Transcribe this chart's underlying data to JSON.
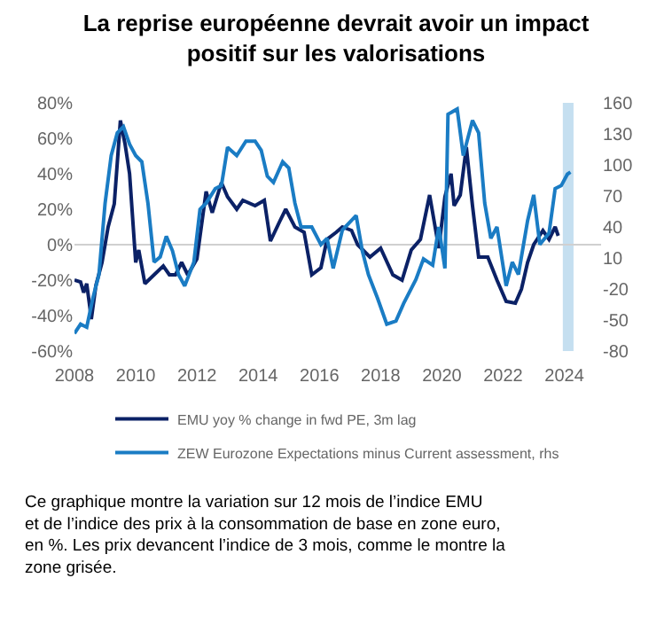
{
  "chart_data": {
    "type": "line",
    "title": "La reprise européenne devrait avoir un impact\npositif sur les valorisations",
    "xlim": [
      2008,
      2025.2
    ],
    "xticks": [
      2008,
      2010,
      2012,
      2014,
      2016,
      2018,
      2020,
      2022,
      2024
    ],
    "ylim": [
      -60,
      80
    ],
    "yticks": [
      {
        "value": -60,
        "label": "-60%"
      },
      {
        "value": -40,
        "label": "-40%"
      },
      {
        "value": -20,
        "label": "-20%"
      },
      {
        "value": 0,
        "label": "0%"
      },
      {
        "value": 20,
        "label": "20%"
      },
      {
        "value": 40,
        "label": "40%"
      },
      {
        "value": 60,
        "label": "60%"
      },
      {
        "value": 80,
        "label": "80%"
      }
    ],
    "y2lim": [
      -80,
      160
    ],
    "y2ticks": [
      -80,
      -50,
      -20,
      10,
      40,
      70,
      100,
      130,
      160
    ],
    "grid": false,
    "legend": "bottom",
    "marker": "none",
    "line_style": "solid",
    "ref_lines": [
      {
        "axis": "y",
        "value": 0,
        "label": null,
        "color": "#d0d0d0"
      }
    ],
    "bands": [
      {
        "axis": "x",
        "from": 2023.95,
        "to": 2024.3,
        "label": null,
        "color": "#c5dff0"
      }
    ],
    "series": [
      {
        "name": "EMU yoy % change in fwd PE, 3m lag",
        "color": "#0b2166",
        "x": [
          2008.0,
          2008.2,
          2008.3,
          2008.4,
          2008.5,
          2008.55,
          2008.7,
          2008.9,
          2009.1,
          2009.3,
          2009.5,
          2009.65,
          2009.8,
          2010.0,
          2010.1,
          2010.3,
          2010.6,
          2010.9,
          2011.1,
          2011.3,
          2011.5,
          2011.7,
          2012.0,
          2012.3,
          2012.5,
          2012.8,
          2013.0,
          2013.3,
          2013.5,
          2013.9,
          2014.2,
          2014.4,
          2014.7,
          2014.9,
          2015.2,
          2015.5,
          2015.75,
          2016.05,
          2016.25,
          2016.55,
          2016.75,
          2017.05,
          2017.25,
          2017.65,
          2018.0,
          2018.4,
          2018.7,
          2019.0,
          2019.3,
          2019.6,
          2019.9,
          2020.1,
          2020.3,
          2020.4,
          2020.6,
          2020.8,
          2021.0,
          2021.2,
          2021.5,
          2021.8,
          2022.1,
          2022.4,
          2022.6,
          2022.8,
          2023.0,
          2023.3,
          2023.5,
          2023.7,
          2023.8
        ],
        "values": [
          -20,
          -21,
          -27,
          -22,
          -35,
          -42,
          -23,
          -10,
          10,
          23,
          70,
          57,
          40,
          -10,
          -3,
          -22,
          -17,
          -12,
          -17,
          -17,
          -10,
          -17,
          -8,
          30,
          18,
          35,
          27,
          20,
          25,
          22,
          25,
          2,
          13,
          20,
          10,
          7,
          -17,
          -13,
          3,
          7,
          10,
          8,
          0,
          -7,
          -2,
          -17,
          -20,
          -3,
          3,
          28,
          -2,
          27,
          40,
          22,
          28,
          55,
          22,
          -7,
          -7,
          -20,
          -32,
          -33,
          -25,
          -10,
          0,
          8,
          3,
          10,
          5
        ]
      },
      {
        "name": "ZEW Eurozone Expectations minus Current assessment, rhs",
        "color": "#1a7cc4",
        "axis": "y2",
        "x": [
          2008.0,
          2008.2,
          2008.4,
          2008.6,
          2008.8,
          2009.0,
          2009.2,
          2009.4,
          2009.6,
          2009.8,
          2010.0,
          2010.2,
          2010.4,
          2010.6,
          2010.8,
          2011.0,
          2011.2,
          2011.4,
          2011.6,
          2011.9,
          2012.1,
          2012.3,
          2012.6,
          2012.8,
          2013.0,
          2013.3,
          2013.6,
          2013.9,
          2014.1,
          2014.3,
          2014.5,
          2014.8,
          2015.0,
          2015.2,
          2015.4,
          2015.75,
          2016.05,
          2016.25,
          2016.45,
          2016.75,
          2017.2,
          2017.4,
          2017.6,
          2017.9,
          2018.2,
          2018.5,
          2018.75,
          2019.15,
          2019.4,
          2019.7,
          2019.9,
          2020.1,
          2020.2,
          2020.5,
          2020.7,
          2021.0,
          2021.2,
          2021.4,
          2021.6,
          2021.8,
          2022.1,
          2022.3,
          2022.5,
          2022.8,
          2023.0,
          2023.2,
          2023.5,
          2023.7,
          2023.9,
          2024.1,
          2024.2
        ],
        "values": [
          -63,
          -54,
          -57,
          -29,
          -6,
          63,
          109,
          131,
          137,
          120,
          109,
          103,
          63,
          6,
          11,
          31,
          17,
          -6,
          -17,
          6,
          57,
          63,
          77,
          80,
          117,
          109,
          123,
          123,
          114,
          89,
          83,
          103,
          97,
          63,
          40,
          40,
          23,
          29,
          0,
          37,
          51,
          17,
          -6,
          -29,
          -54,
          -51,
          -34,
          -11,
          9,
          3,
          40,
          0,
          149,
          154,
          109,
          143,
          131,
          63,
          29,
          40,
          -17,
          6,
          -6,
          46,
          71,
          23,
          34,
          77,
          80,
          91,
          93
        ]
      }
    ],
    "annotations": [
      "Ce graphique montre la variation sur 12 mois de l’indice EMU\net de l’indice des prix à la consommation de base en zone euro,\nen %. Les prix devancent l’indice de 3 mois, comme le montre la\nzone grisée."
    ]
  }
}
